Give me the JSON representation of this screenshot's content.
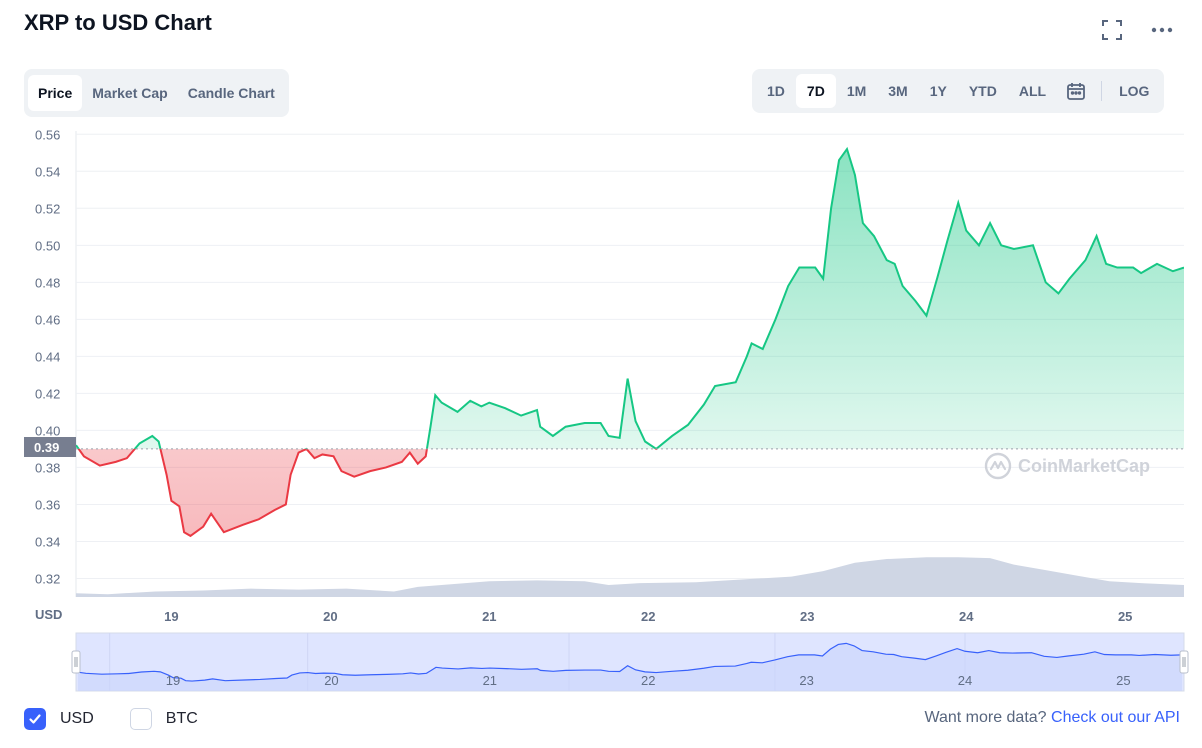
{
  "header": {
    "title": "XRP to USD Chart",
    "fullscreen_icon": "fullscreen-icon",
    "more_icon": "more-icon"
  },
  "chart_tabs": {
    "items": [
      "Price",
      "Market Cap",
      "Candle Chart"
    ],
    "active": "Price"
  },
  "ranges": {
    "items": [
      "1D",
      "7D",
      "1M",
      "3M",
      "1Y",
      "YTD",
      "ALL"
    ],
    "active": "7D",
    "calendar_icon": "calendar-icon",
    "log_label": "LOG"
  },
  "chart_data": {
    "type": "area",
    "y_ticks": [
      "0.56",
      "0.54",
      "0.52",
      "0.50",
      "0.48",
      "0.46",
      "0.44",
      "0.42",
      "0.40",
      "0.38",
      "0.36",
      "0.34",
      "0.32"
    ],
    "ylim": [
      0.31,
      0.565
    ],
    "x_ticks": [
      "19",
      "20",
      "21",
      "22",
      "23",
      "24",
      "25"
    ],
    "x_label": "USD",
    "baseline_price": 0.39,
    "current_price_label": "0.39",
    "colors": {
      "up": "#16c784",
      "down": "#ea3943",
      "volume": "#cfd6e4",
      "navigator": "#3861fb"
    },
    "price_series": [
      [
        18.4,
        0.392
      ],
      [
        18.45,
        0.386
      ],
      [
        18.55,
        0.381
      ],
      [
        18.65,
        0.383
      ],
      [
        18.72,
        0.385
      ],
      [
        18.8,
        0.393
      ],
      [
        18.88,
        0.397
      ],
      [
        18.92,
        0.394
      ],
      [
        18.97,
        0.376
      ],
      [
        19.0,
        0.362
      ],
      [
        19.05,
        0.359
      ],
      [
        19.08,
        0.345
      ],
      [
        19.12,
        0.343
      ],
      [
        19.2,
        0.348
      ],
      [
        19.25,
        0.355
      ],
      [
        19.33,
        0.345
      ],
      [
        19.45,
        0.349
      ],
      [
        19.55,
        0.352
      ],
      [
        19.65,
        0.357
      ],
      [
        19.72,
        0.36
      ],
      [
        19.75,
        0.376
      ],
      [
        19.8,
        0.388
      ],
      [
        19.85,
        0.39
      ],
      [
        19.9,
        0.385
      ],
      [
        19.95,
        0.387
      ],
      [
        20.02,
        0.386
      ],
      [
        20.07,
        0.378
      ],
      [
        20.15,
        0.375
      ],
      [
        20.25,
        0.378
      ],
      [
        20.35,
        0.38
      ],
      [
        20.45,
        0.383
      ],
      [
        20.5,
        0.388
      ],
      [
        20.55,
        0.382
      ],
      [
        20.6,
        0.386
      ],
      [
        20.63,
        0.402
      ],
      [
        20.66,
        0.419
      ],
      [
        20.7,
        0.415
      ],
      [
        20.8,
        0.41
      ],
      [
        20.88,
        0.416
      ],
      [
        20.95,
        0.413
      ],
      [
        21.0,
        0.415
      ],
      [
        21.1,
        0.412
      ],
      [
        21.2,
        0.408
      ],
      [
        21.3,
        0.411
      ],
      [
        21.32,
        0.402
      ],
      [
        21.4,
        0.397
      ],
      [
        21.48,
        0.402
      ],
      [
        21.6,
        0.404
      ],
      [
        21.7,
        0.404
      ],
      [
        21.75,
        0.397
      ],
      [
        21.82,
        0.396
      ],
      [
        21.87,
        0.428
      ],
      [
        21.92,
        0.405
      ],
      [
        21.98,
        0.394
      ],
      [
        22.05,
        0.39
      ],
      [
        22.15,
        0.397
      ],
      [
        22.25,
        0.403
      ],
      [
        22.35,
        0.414
      ],
      [
        22.42,
        0.424
      ],
      [
        22.55,
        0.426
      ],
      [
        22.62,
        0.44
      ],
      [
        22.65,
        0.447
      ],
      [
        22.72,
        0.444
      ],
      [
        22.8,
        0.46
      ],
      [
        22.88,
        0.478
      ],
      [
        22.95,
        0.488
      ],
      [
        23.05,
        0.488
      ],
      [
        23.1,
        0.482
      ],
      [
        23.15,
        0.52
      ],
      [
        23.2,
        0.546
      ],
      [
        23.25,
        0.552
      ],
      [
        23.3,
        0.538
      ],
      [
        23.35,
        0.512
      ],
      [
        23.42,
        0.505
      ],
      [
        23.5,
        0.492
      ],
      [
        23.55,
        0.49
      ],
      [
        23.6,
        0.478
      ],
      [
        23.68,
        0.47
      ],
      [
        23.75,
        0.462
      ],
      [
        23.82,
        0.483
      ],
      [
        23.88,
        0.502
      ],
      [
        23.95,
        0.523
      ],
      [
        24.0,
        0.508
      ],
      [
        24.08,
        0.5
      ],
      [
        24.15,
        0.512
      ],
      [
        24.22,
        0.5
      ],
      [
        24.3,
        0.498
      ],
      [
        24.42,
        0.5
      ],
      [
        24.5,
        0.48
      ],
      [
        24.58,
        0.474
      ],
      [
        24.65,
        0.482
      ],
      [
        24.75,
        0.492
      ],
      [
        24.82,
        0.505
      ],
      [
        24.88,
        0.49
      ],
      [
        24.95,
        0.488
      ],
      [
        25.05,
        0.488
      ],
      [
        25.1,
        0.485
      ],
      [
        25.2,
        0.49
      ],
      [
        25.3,
        0.486
      ],
      [
        25.37,
        0.488
      ]
    ],
    "volume_series": [
      [
        18.4,
        0.312
      ],
      [
        18.6,
        0.3115
      ],
      [
        18.9,
        0.313
      ],
      [
        19.2,
        0.3135
      ],
      [
        19.5,
        0.3145
      ],
      [
        19.8,
        0.314
      ],
      [
        20.1,
        0.3145
      ],
      [
        20.4,
        0.313
      ],
      [
        20.55,
        0.3155
      ],
      [
        20.7,
        0.3165
      ],
      [
        21.0,
        0.3185
      ],
      [
        21.3,
        0.319
      ],
      [
        21.6,
        0.3185
      ],
      [
        21.75,
        0.3165
      ],
      [
        21.95,
        0.3175
      ],
      [
        22.3,
        0.318
      ],
      [
        22.6,
        0.3195
      ],
      [
        22.9,
        0.321
      ],
      [
        23.1,
        0.324
      ],
      [
        23.3,
        0.3285
      ],
      [
        23.5,
        0.3305
      ],
      [
        23.75,
        0.3315
      ],
      [
        23.95,
        0.3315
      ],
      [
        24.15,
        0.331
      ],
      [
        24.3,
        0.3275
      ],
      [
        24.5,
        0.3245
      ],
      [
        24.7,
        0.3215
      ],
      [
        24.9,
        0.3185
      ],
      [
        25.1,
        0.3175
      ],
      [
        25.37,
        0.3165
      ]
    ]
  },
  "watermark": {
    "brand": "CoinMarketCap"
  },
  "footer": {
    "currencies": [
      {
        "label": "USD",
        "checked": true
      },
      {
        "label": "BTC",
        "checked": false
      }
    ],
    "api_prompt": "Want more data?",
    "api_link": "Check out our API"
  }
}
